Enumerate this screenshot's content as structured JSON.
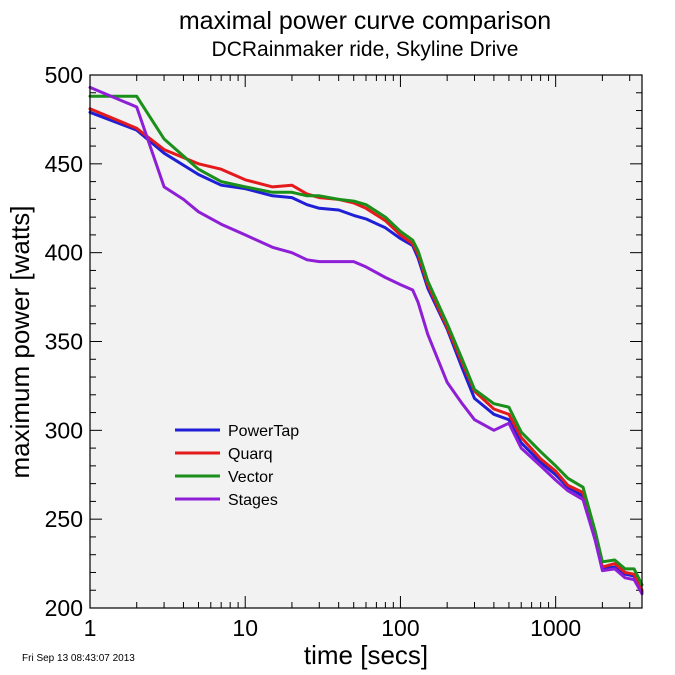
{
  "chart_data": {
    "type": "line",
    "title": "maximal power curve comparison",
    "subtitle": "DCRainmaker ride, Skyline Drive",
    "xlabel": "time [secs]",
    "ylabel": "maximum power [watts]",
    "x_scale": "log",
    "xlim": [
      1,
      3600
    ],
    "ylim": [
      200,
      500
    ],
    "x_ticks": [
      1,
      10,
      100,
      1000
    ],
    "x_tick_labels": [
      "1",
      "10",
      "100",
      "1000"
    ],
    "y_ticks": [
      200,
      250,
      300,
      350,
      400,
      450,
      500
    ],
    "y_tick_labels": [
      "200",
      "250",
      "300",
      "350",
      "400",
      "450",
      "500"
    ],
    "grid": false,
    "legend_position": "lower-left",
    "plot_background": "#f2f2f2",
    "series": [
      {
        "name": "PowerTap",
        "color": "#1f1fd6",
        "x": [
          1,
          2,
          3,
          5,
          7,
          10,
          15,
          20,
          25,
          30,
          40,
          50,
          60,
          80,
          100,
          120,
          130,
          150,
          200,
          250,
          300,
          400,
          500,
          600,
          800,
          1000,
          1200,
          1500,
          1800,
          2000,
          2400,
          2800,
          3200,
          3600
        ],
        "y": [
          479,
          469,
          456,
          444,
          438,
          436,
          432,
          431,
          427,
          425,
          424,
          421,
          419,
          414,
          408,
          404,
          397,
          380,
          357,
          335,
          318,
          309,
          306,
          293,
          282,
          275,
          268,
          263,
          238,
          222,
          223,
          219,
          218,
          209
        ]
      },
      {
        "name": "Quarq",
        "color": "#e41a1c",
        "x": [
          1,
          2,
          3,
          5,
          7,
          10,
          15,
          20,
          25,
          30,
          40,
          50,
          60,
          80,
          100,
          120,
          130,
          150,
          200,
          250,
          300,
          400,
          500,
          600,
          800,
          1000,
          1200,
          1500,
          1800,
          2000,
          2400,
          2800,
          3200,
          3600
        ],
        "y": [
          481,
          470,
          458,
          450,
          447,
          441,
          437,
          438,
          433,
          431,
          430,
          428,
          425,
          418,
          410,
          405,
          399,
          382,
          358,
          338,
          322,
          312,
          309,
          296,
          284,
          277,
          269,
          265,
          240,
          223,
          225,
          220,
          219,
          210
        ]
      },
      {
        "name": "Vector",
        "color": "#1a8f1a",
        "x": [
          1,
          2,
          3,
          5,
          7,
          10,
          15,
          20,
          25,
          30,
          40,
          50,
          60,
          80,
          100,
          120,
          130,
          150,
          200,
          250,
          300,
          400,
          500,
          600,
          800,
          1000,
          1200,
          1500,
          1800,
          2000,
          2400,
          2800,
          3200,
          3600
        ],
        "y": [
          488,
          488,
          464,
          447,
          440,
          437,
          434,
          434,
          432,
          432,
          430,
          429,
          427,
          420,
          412,
          407,
          401,
          384,
          360,
          340,
          323,
          315,
          313,
          299,
          288,
          280,
          273,
          268,
          243,
          226,
          227,
          222,
          222,
          213
        ]
      },
      {
        "name": "Stages",
        "color": "#8f1fd6",
        "x": [
          1,
          2,
          3,
          4,
          5,
          7,
          10,
          15,
          20,
          25,
          30,
          40,
          50,
          60,
          80,
          100,
          120,
          130,
          150,
          200,
          250,
          300,
          400,
          500,
          600,
          800,
          1000,
          1200,
          1500,
          1800,
          2000,
          2400,
          2800,
          3200,
          3600
        ],
        "y": [
          493,
          482,
          437,
          430,
          423,
          416,
          410,
          403,
          400,
          396,
          395,
          395,
          395,
          392,
          386,
          382,
          379,
          372,
          354,
          327,
          315,
          306,
          300,
          304,
          290,
          280,
          272,
          266,
          261,
          238,
          221,
          222,
          217,
          216,
          208
        ]
      }
    ]
  },
  "footer_timestamp": "Fri Sep 13 08:43:07 2013"
}
